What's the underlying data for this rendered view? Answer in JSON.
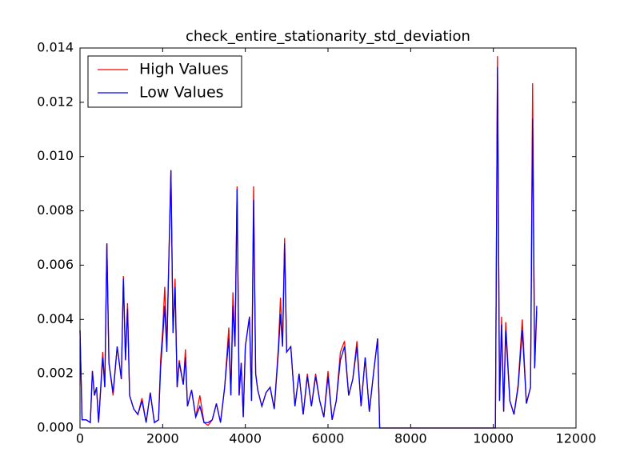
{
  "chart_data": {
    "type": "line",
    "title": "check_entire_stationarity_std_deviation",
    "x": [
      0,
      50,
      150,
      250,
      300,
      350,
      400,
      450,
      550,
      600,
      650,
      700,
      800,
      900,
      1000,
      1050,
      1100,
      1150,
      1200,
      1300,
      1400,
      1500,
      1600,
      1700,
      1800,
      1900,
      1950,
      2000,
      2050,
      2100,
      2150,
      2200,
      2250,
      2300,
      2350,
      2400,
      2500,
      2550,
      2600,
      2700,
      2800,
      2900,
      3000,
      3100,
      3200,
      3300,
      3400,
      3500,
      3600,
      3650,
      3700,
      3750,
      3800,
      3850,
      3900,
      3950,
      4000,
      4100,
      4150,
      4200,
      4250,
      4300,
      4400,
      4500,
      4600,
      4700,
      4800,
      4850,
      4900,
      4950,
      5000,
      5100,
      5200,
      5300,
      5400,
      5500,
      5600,
      5700,
      5800,
      5900,
      6000,
      6100,
      6200,
      6300,
      6400,
      6500,
      6600,
      6700,
      6800,
      6900,
      7000,
      7100,
      7200,
      7250,
      10000,
      10050,
      10100,
      10150,
      10200,
      10250,
      10300,
      10400,
      10500,
      10600,
      10700,
      10800,
      10850,
      10900,
      10950,
      11000,
      11050
    ],
    "series": [
      {
        "name": "High Values",
        "color": "#ff0000",
        "values": [
          0.0036,
          0.0003,
          0.0003,
          0.0002,
          0.0021,
          0.0012,
          0.0015,
          0.0002,
          0.0028,
          0.0015,
          0.0068,
          0.0024,
          0.0012,
          0.003,
          0.0018,
          0.0056,
          0.0025,
          0.0046,
          0.0012,
          0.0007,
          0.0005,
          0.0011,
          0.0002,
          0.0013,
          0.0002,
          0.0003,
          0.0025,
          0.0036,
          0.0052,
          0.003,
          0.0063,
          0.0095,
          0.0035,
          0.0055,
          0.0015,
          0.0025,
          0.0016,
          0.0029,
          0.0008,
          0.0014,
          0.0004,
          0.0012,
          0.0002,
          0.0001,
          0.0003,
          0.0009,
          0.0002,
          0.0015,
          0.0037,
          0.0012,
          0.005,
          0.003,
          0.0089,
          0.0012,
          0.0024,
          0.0004,
          0.003,
          0.0041,
          0.001,
          0.0089,
          0.002,
          0.0014,
          0.0008,
          0.0013,
          0.0015,
          0.0007,
          0.003,
          0.0048,
          0.003,
          0.007,
          0.0028,
          0.003,
          0.0008,
          0.002,
          0.0005,
          0.002,
          0.0008,
          0.002,
          0.001,
          0.0004,
          0.0021,
          0.0003,
          0.001,
          0.0028,
          0.0032,
          0.0012,
          0.0018,
          0.0032,
          0.0008,
          0.0026,
          0.0006,
          0.002,
          0.0033,
          0,
          0,
          0,
          0.0137,
          0.001,
          0.0041,
          0.0006,
          0.0039,
          0.001,
          0.0005,
          0.0016,
          0.004,
          0.0009,
          0.0012,
          0.0015,
          0.0127,
          0.0022,
          0.0043
        ]
      },
      {
        "name": "Low Values",
        "color": "#0000ff",
        "values": [
          0.0036,
          0.0003,
          0.0003,
          0.0002,
          0.0021,
          0.0012,
          0.0015,
          0.0002,
          0.0026,
          0.0015,
          0.0068,
          0.0024,
          0.0013,
          0.003,
          0.0018,
          0.0055,
          0.0025,
          0.0044,
          0.0012,
          0.0007,
          0.0005,
          0.001,
          0.0002,
          0.0013,
          0.0002,
          0.0003,
          0.0022,
          0.0033,
          0.0045,
          0.0028,
          0.0062,
          0.0095,
          0.0035,
          0.0052,
          0.0015,
          0.0024,
          0.0016,
          0.0026,
          0.0008,
          0.0014,
          0.0004,
          0.0008,
          0.0002,
          0.0002,
          0.0003,
          0.0009,
          0.0002,
          0.0015,
          0.0033,
          0.0012,
          0.0045,
          0.003,
          0.0088,
          0.0012,
          0.0024,
          0.0004,
          0.003,
          0.0041,
          0.001,
          0.0084,
          0.002,
          0.0014,
          0.0008,
          0.0013,
          0.0015,
          0.0007,
          0.0028,
          0.0042,
          0.003,
          0.0068,
          0.0028,
          0.003,
          0.0008,
          0.002,
          0.0005,
          0.0019,
          0.0008,
          0.0019,
          0.001,
          0.0004,
          0.0019,
          0.0003,
          0.001,
          0.0025,
          0.003,
          0.0012,
          0.0018,
          0.003,
          0.0008,
          0.0026,
          0.0006,
          0.002,
          0.0033,
          0,
          0,
          0,
          0.0133,
          0.001,
          0.0038,
          0.0006,
          0.0036,
          0.001,
          0.0005,
          0.0015,
          0.0036,
          0.0009,
          0.0012,
          0.0015,
          0.0114,
          0.0022,
          0.0045
        ]
      }
    ],
    "xlim": [
      0,
      12000
    ],
    "xticks": [
      0,
      2000,
      4000,
      6000,
      8000,
      10000,
      12000
    ],
    "ylim": [
      0,
      0.014
    ],
    "yticks": [
      {
        "value": 0,
        "label": "0.000"
      },
      {
        "value": 0.002,
        "label": "0.002"
      },
      {
        "value": 0.004,
        "label": "0.004"
      },
      {
        "value": 0.006,
        "label": "0.006"
      },
      {
        "value": 0.008,
        "label": "0.008"
      },
      {
        "value": 0.01,
        "label": "0.010"
      },
      {
        "value": 0.012,
        "label": "0.012"
      },
      {
        "value": 0.014,
        "label": "0.014"
      }
    ],
    "legend": "upper left"
  }
}
